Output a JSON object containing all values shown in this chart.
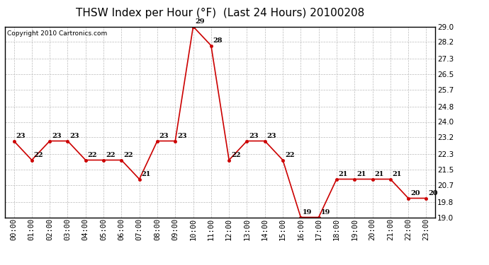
{
  "title": "THSW Index per Hour (°F)  (Last 24 Hours) 20100208",
  "copyright": "Copyright 2010 Cartronics.com",
  "hours": [
    "00:00",
    "01:00",
    "02:00",
    "03:00",
    "04:00",
    "05:00",
    "06:00",
    "07:00",
    "08:00",
    "09:00",
    "10:00",
    "11:00",
    "12:00",
    "13:00",
    "14:00",
    "15:00",
    "16:00",
    "17:00",
    "18:00",
    "19:00",
    "20:00",
    "21:00",
    "22:00",
    "23:00"
  ],
  "values": [
    23,
    22,
    23,
    23,
    22,
    22,
    22,
    21,
    23,
    23,
    29,
    28,
    22,
    23,
    23,
    22,
    19,
    19,
    21,
    21,
    21,
    21,
    20,
    20
  ],
  "line_color": "#cc0000",
  "marker_color": "#cc0000",
  "background_color": "#ffffff",
  "grid_color": "#bbbbbb",
  "ylim": [
    19.0,
    29.0
  ],
  "yticks": [
    19.0,
    19.8,
    20.7,
    21.5,
    22.3,
    23.2,
    24.0,
    24.8,
    25.7,
    26.5,
    27.3,
    28.2,
    29.0
  ],
  "title_fontsize": 11,
  "annotation_fontsize": 7,
  "tick_fontsize": 7.5,
  "copyright_fontsize": 6.5
}
